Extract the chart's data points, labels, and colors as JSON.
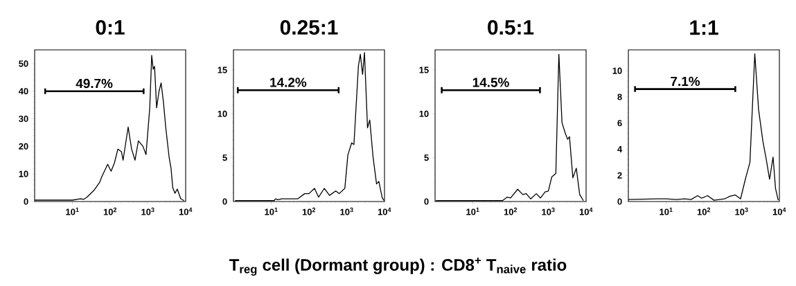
{
  "chart_data": [
    {
      "type": "line",
      "title": "0:1",
      "xlabel": "T$_{reg}$ cell (Dormant group) : CD8$^{+}$ T$_{naive}$ ratio",
      "log": "x",
      "xlim": [
        1,
        10000
      ],
      "ylim": [
        0,
        55
      ],
      "marker": "none",
      "line_style": "solid",
      "xticks": [
        {
          "value": 10,
          "label": "10$^{1}$"
        },
        {
          "value": 100,
          "label": "10$^{2}$"
        },
        {
          "value": 1000,
          "label": "10$^{3}$"
        },
        {
          "value": 10000,
          "label": "10$^{4}$"
        }
      ],
      "yticks": [
        0,
        10,
        20,
        30,
        40,
        50
      ],
      "series": [
        {
          "color": "#000000",
          "x": [
            1,
            10,
            16,
            20,
            24,
            37,
            53,
            60,
            86,
            106,
            130,
            160,
            200,
            220,
            300,
            370,
            455,
            560,
            740,
            890,
            1120,
            1260,
            1380,
            1500,
            1700,
            1970,
            2240,
            2580,
            2960,
            3650,
            4100,
            4550,
            5200,
            6000,
            7400,
            9100
          ],
          "values": [
            0.5,
            0.5,
            1,
            0.8,
            1.5,
            4,
            7,
            9,
            13.5,
            11,
            14,
            19,
            18,
            15,
            27,
            19,
            15,
            22,
            20,
            17,
            34,
            53,
            48,
            49,
            34,
            40,
            43,
            36,
            27,
            16,
            12,
            5,
            3,
            4.5,
            1,
            0.3
          ]
        },
        {
          "color": "#000000",
          "x": [
            1.9,
            770
          ],
          "values": [
            40,
            40
          ],
          "errors": [
            1,
            1
          ]
        }
      ],
      "annotations": [
        {
          "text": "49.7%",
          "x": 38,
          "y": 40
        }
      ]
    },
    {
      "type": "line",
      "title": "0.25:1",
      "log": "x",
      "xlim": [
        1,
        10000
      ],
      "ylim": [
        0,
        17.3
      ],
      "marker": "none",
      "line_style": "solid",
      "xticks": [
        {
          "value": 10,
          "label": "10$^{1}$"
        },
        {
          "value": 100,
          "label": "10$^{2}$"
        },
        {
          "value": 1000,
          "label": "10$^{3}$"
        },
        {
          "value": 10000,
          "label": "10$^{4}$"
        }
      ],
      "yticks": [
        0,
        5,
        10,
        15
      ],
      "series": [
        {
          "color": "#000000",
          "x": [
            1.1,
            12,
            13,
            15,
            19,
            50,
            77,
            100,
            140,
            180,
            255,
            350,
            510,
            630,
            890,
            1070,
            1350,
            1550,
            2040,
            2290,
            2630,
            2950,
            3550,
            4070,
            5000,
            6160,
            7080,
            8710,
            9770
          ],
          "values": [
            0.1,
            0.1,
            0.3,
            0.2,
            0.3,
            0.3,
            0.9,
            0.9,
            1.5,
            0.5,
            1.5,
            0.7,
            1.2,
            0.9,
            1.5,
            5.3,
            6.7,
            6.5,
            15.5,
            16.8,
            14.5,
            17,
            8.4,
            9.3,
            5,
            2,
            2.3,
            0.4,
            0.1
          ]
        },
        {
          "color": "#000000",
          "x": [
            1.3,
            610
          ],
          "values": [
            12.7,
            12.7
          ],
          "errors": [
            0.35,
            0.35
          ]
        }
      ],
      "annotations": [
        {
          "text": "14.2%",
          "x": 28,
          "y": 12.7
        }
      ]
    },
    {
      "type": "line",
      "title": "0.5:1",
      "log": "x",
      "xlim": [
        1,
        10000
      ],
      "ylim": [
        0,
        17.3
      ],
      "marker": "none",
      "line_style": "solid",
      "xticks": [
        {
          "value": 10,
          "label": "10$^{1}$"
        },
        {
          "value": 100,
          "label": "10$^{2}$"
        },
        {
          "value": 1000,
          "label": "10$^{3}$"
        },
        {
          "value": 10000,
          "label": "10$^{4}$"
        }
      ],
      "yticks": [
        0,
        5,
        10,
        15
      ],
      "series": [
        {
          "color": "#000000",
          "x": [
            1.05,
            12.5,
            22,
            61,
            81,
            100,
            154,
            210,
            260,
            340,
            480,
            620,
            820,
            1000,
            1230,
            1580,
            1900,
            2300,
            2800,
            3240,
            3630,
            4460,
            5500,
            6760,
            8500
          ],
          "values": [
            0.1,
            0.1,
            0.1,
            0.1,
            0.5,
            0.4,
            1.4,
            0.8,
            0.9,
            0.3,
            0.9,
            0.4,
            1.1,
            1.2,
            2.8,
            3.2,
            16.8,
            9,
            7.8,
            7.1,
            7.4,
            2.7,
            3.8,
            0.8,
            0.1
          ]
        },
        {
          "color": "#000000",
          "x": [
            1.5,
            600
          ],
          "values": [
            12.7,
            12.7
          ],
          "errors": [
            0.35,
            0.35
          ]
        }
      ],
      "annotations": [
        {
          "text": "14.5%",
          "x": 30,
          "y": 12.7
        }
      ]
    },
    {
      "type": "line",
      "title": "1:1",
      "log": "x",
      "xlim": [
        1,
        10000
      ],
      "ylim": [
        0,
        11.6
      ],
      "marker": "none",
      "line_style": "solid",
      "xticks": [
        {
          "value": 10,
          "label": "10$^{1}$"
        },
        {
          "value": 100,
          "label": "10$^{2}$"
        },
        {
          "value": 1000,
          "label": "10$^{3}$"
        },
        {
          "value": 10000,
          "label": "10$^{4}$"
        }
      ],
      "yticks": [
        0,
        2,
        4,
        6,
        8,
        10
      ],
      "series": [
        {
          "color": "#000000",
          "x": [
            1,
            5.8,
            10,
            18.6,
            31,
            46,
            68,
            87,
            125,
            185,
            355,
            490,
            680,
            935,
            1280,
            1660,
            2230,
            2820,
            3660,
            4440,
            5500,
            6800,
            7900,
            9300
          ],
          "values": [
            0.15,
            0.2,
            0.2,
            0.15,
            0.2,
            0.15,
            0.45,
            0.25,
            0.45,
            0.1,
            0.2,
            0.4,
            0.5,
            0.2,
            1.8,
            3,
            11.3,
            7,
            4.6,
            3.3,
            1.7,
            3.4,
            1,
            0.1
          ]
        },
        {
          "color": "#000000",
          "x": [
            1.5,
            680
          ],
          "values": [
            8.6,
            8.6
          ],
          "errors": [
            0.22,
            0.22
          ]
        }
      ],
      "annotations": [
        {
          "text": "7.1%",
          "x": 32,
          "y": 8.6
        }
      ]
    }
  ]
}
